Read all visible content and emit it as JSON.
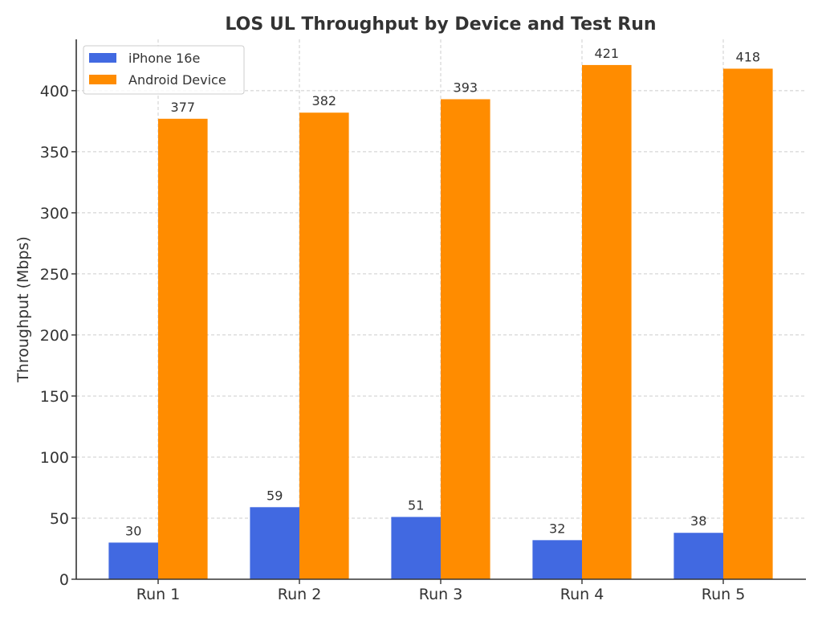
{
  "chart_data": {
    "type": "bar",
    "title": "LOS UL Throughput by Device and Test Run",
    "xlabel": "",
    "ylabel": "Throughput (Mbps)",
    "categories": [
      "Run 1",
      "Run 2",
      "Run 3",
      "Run 4",
      "Run 5"
    ],
    "series": [
      {
        "name": "iPhone 16e",
        "color": "#4169E1",
        "values": [
          30,
          59,
          51,
          32,
          38
        ]
      },
      {
        "name": "Android Device",
        "color": "#FF8C00",
        "values": [
          377,
          382,
          393,
          421,
          418
        ]
      }
    ],
    "ylim": [
      0,
      442
    ],
    "yticks": [
      0,
      50,
      100,
      150,
      200,
      250,
      300,
      350,
      400
    ],
    "ytick_labels": [
      "0",
      "50",
      "100",
      "150",
      "200",
      "250",
      "300",
      "350",
      "400"
    ],
    "grid": true,
    "legend_position": "top-left",
    "data_labels": true
  }
}
